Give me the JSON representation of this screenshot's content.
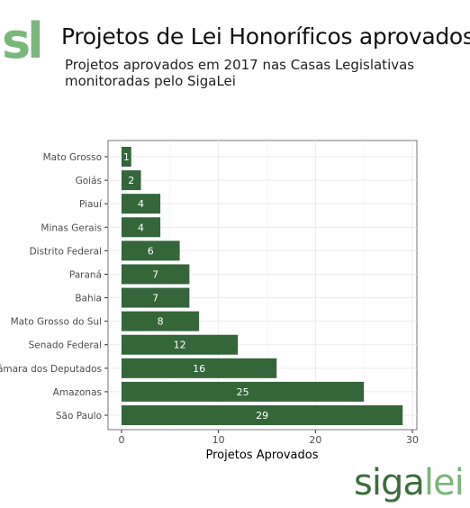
{
  "header": {
    "logo_text": "sl",
    "title": "Projetos de Lei Honoríficos aprovados",
    "subtitle_line1": "Projetos aprovados em 2017 nas Casas Legislativas",
    "subtitle_line2": "monitoradas pelo SigaLei"
  },
  "brand": {
    "part1": "siga",
    "part2": "lei"
  },
  "colors": {
    "bar": "#35663a",
    "logo_light": "#79b77a",
    "logo_dark": "#3b6e3b",
    "panel": "#ffffff",
    "grid": "#ebebeb"
  },
  "chart_data": {
    "type": "bar",
    "orientation": "horizontal",
    "categories": [
      "Mato Grosso",
      "Goiás",
      "Piauí",
      "Minas Gerais",
      "Distrito Federal",
      "Paraná",
      "Bahia",
      "Mato Grosso do Sul",
      "Senado Federal",
      "Câmara dos Deputados",
      "Amazonas",
      "São Paulo"
    ],
    "values": [
      1,
      2,
      4,
      4,
      6,
      7,
      7,
      8,
      12,
      16,
      25,
      29
    ],
    "xlabel": "Projetos Aprovados",
    "ylabel": "",
    "xlim": [
      0,
      30
    ],
    "xticks": [
      0,
      10,
      20,
      30
    ],
    "grid": true
  }
}
